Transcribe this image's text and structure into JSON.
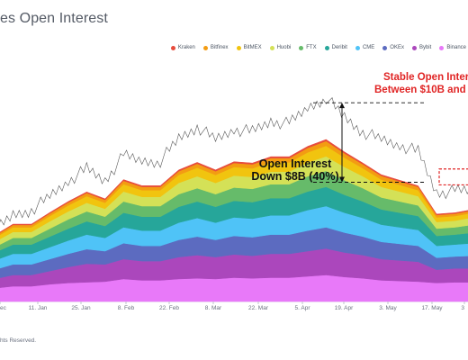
{
  "header": {
    "title": "es Open Interest"
  },
  "footer": {
    "text": "hts Reserved."
  },
  "legend": [
    {
      "name": "Kraken",
      "color": "#e74c3c"
    },
    {
      "name": "Bitfinex",
      "color": "#f39c12"
    },
    {
      "name": "BitMEX",
      "color": "#f1c40f"
    },
    {
      "name": "Huobi",
      "color": "#d4e157"
    },
    {
      "name": "FTX",
      "color": "#66bb6a"
    },
    {
      "name": "Deribit",
      "color": "#26a69a"
    },
    {
      "name": "CME",
      "color": "#4fc3f7"
    },
    {
      "name": "OKEx",
      "color": "#5c6bc0"
    },
    {
      "name": "Bybit",
      "color": "#ab47bc"
    },
    {
      "name": "Binance",
      "color": "#e879f9"
    }
  ],
  "annotations": {
    "open_interest_line1": "Open Interest",
    "open_interest_line2": "Down $8B (40%)",
    "stable_line1": "Stable Open Intere",
    "stable_line2": "Between $10B and",
    "stable_color": "#e02424"
  },
  "chart_data": {
    "type": "area",
    "stacked": true,
    "x_tick_labels": [
      "ec",
      "11. Jan",
      "25. Jan",
      "8. Feb",
      "22. Feb",
      "8. Mar",
      "22. Mar",
      "5. Apr",
      "19. Apr",
      "3. May",
      "17. May",
      "3"
    ],
    "series": [
      {
        "name": "Binance",
        "values": [
          1.0,
          1.15,
          1.15,
          1.3,
          1.4,
          1.45,
          1.5,
          1.7,
          1.6,
          1.6,
          1.7,
          1.75,
          1.7,
          1.8,
          1.75,
          1.8,
          1.8,
          1.9,
          2.0,
          1.85,
          1.75,
          1.6,
          1.55,
          1.5,
          1.4,
          1.45,
          1.45
        ]
      },
      {
        "name": "Bybit",
        "values": [
          0.7,
          0.85,
          0.85,
          1.0,
          1.2,
          1.4,
          1.3,
          1.5,
          1.45,
          1.45,
          1.65,
          1.75,
          1.65,
          1.75,
          1.7,
          1.8,
          1.8,
          1.9,
          2.0,
          1.85,
          1.75,
          1.6,
          1.55,
          1.5,
          1.0,
          1.05,
          1.05
        ]
      },
      {
        "name": "OKEx",
        "values": [
          0.7,
          0.8,
          0.8,
          0.9,
          1.0,
          1.1,
          1.0,
          1.2,
          1.15,
          1.15,
          1.3,
          1.4,
          1.3,
          1.4,
          1.4,
          1.45,
          1.45,
          1.55,
          1.6,
          1.5,
          1.4,
          1.3,
          1.25,
          1.2,
          0.9,
          0.9,
          0.95
        ]
      },
      {
        "name": "CME",
        "values": [
          0.7,
          0.8,
          0.8,
          0.9,
          1.0,
          1.1,
          1.0,
          1.2,
          1.15,
          1.15,
          1.3,
          1.4,
          1.3,
          1.4,
          1.4,
          1.45,
          1.45,
          1.55,
          1.6,
          1.5,
          1.4,
          1.3,
          1.25,
          1.2,
          0.9,
          0.9,
          0.95
        ]
      },
      {
        "name": "Deribit",
        "values": [
          0.6,
          0.7,
          0.7,
          0.8,
          0.9,
          1.0,
          0.9,
          1.1,
          1.05,
          1.05,
          1.2,
          1.25,
          1.2,
          1.25,
          1.25,
          1.3,
          1.3,
          1.4,
          1.45,
          1.35,
          1.25,
          1.15,
          1.1,
          1.05,
          0.75,
          0.75,
          0.8
        ]
      },
      {
        "name": "FTX",
        "values": [
          0.4,
          0.5,
          0.5,
          0.6,
          0.7,
          0.75,
          0.7,
          0.85,
          0.8,
          0.8,
          0.95,
          1.0,
          0.95,
          1.0,
          1.0,
          1.05,
          1.05,
          1.15,
          1.2,
          1.1,
          1.0,
          0.9,
          0.85,
          0.8,
          0.55,
          0.55,
          0.6
        ]
      },
      {
        "name": "Huobi",
        "values": [
          0.4,
          0.45,
          0.45,
          0.55,
          0.6,
          0.65,
          0.6,
          0.75,
          0.7,
          0.7,
          0.85,
          0.9,
          0.85,
          0.9,
          0.9,
          0.95,
          0.95,
          1.05,
          1.1,
          1.0,
          0.9,
          0.8,
          0.75,
          0.7,
          0.5,
          0.5,
          0.55
        ]
      },
      {
        "name": "BitMEX",
        "values": [
          0.3,
          0.35,
          0.35,
          0.4,
          0.45,
          0.5,
          0.45,
          0.55,
          0.5,
          0.5,
          0.6,
          0.65,
          0.6,
          0.65,
          0.65,
          0.7,
          0.7,
          0.75,
          0.8,
          0.7,
          0.6,
          0.55,
          0.5,
          0.45,
          0.35,
          0.35,
          0.35
        ]
      },
      {
        "name": "Bitfinex",
        "values": [
          0.15,
          0.18,
          0.18,
          0.2,
          0.22,
          0.24,
          0.22,
          0.26,
          0.25,
          0.25,
          0.28,
          0.3,
          0.28,
          0.3,
          0.3,
          0.32,
          0.32,
          0.34,
          0.36,
          0.33,
          0.3,
          0.28,
          0.26,
          0.25,
          0.18,
          0.18,
          0.18
        ]
      },
      {
        "name": "Kraken",
        "values": [
          0.05,
          0.06,
          0.06,
          0.07,
          0.08,
          0.08,
          0.08,
          0.09,
          0.09,
          0.09,
          0.1,
          0.1,
          0.1,
          0.1,
          0.1,
          0.11,
          0.11,
          0.12,
          0.12,
          0.11,
          0.1,
          0.09,
          0.09,
          0.08,
          0.07,
          0.07,
          0.07
        ]
      }
    ],
    "price_overlay": [
      5.3,
      6.5,
      6.9,
      7.9,
      9.1,
      10.0,
      9.1,
      11.0,
      10.6,
      10.6,
      12.3,
      13.2,
      12.2,
      13.0,
      12.8,
      13.6,
      13.4,
      14.6,
      15.4,
      13.9,
      12.8,
      12.2,
      11.8,
      11.3,
      8.2,
      8.3,
      8.4
    ],
    "bracket_open_interest": {
      "high": 15.0,
      "low": 9.0
    },
    "stable_band": {
      "low": 8.8,
      "high": 10.0
    },
    "grid": false,
    "legend_position": "top-right"
  }
}
